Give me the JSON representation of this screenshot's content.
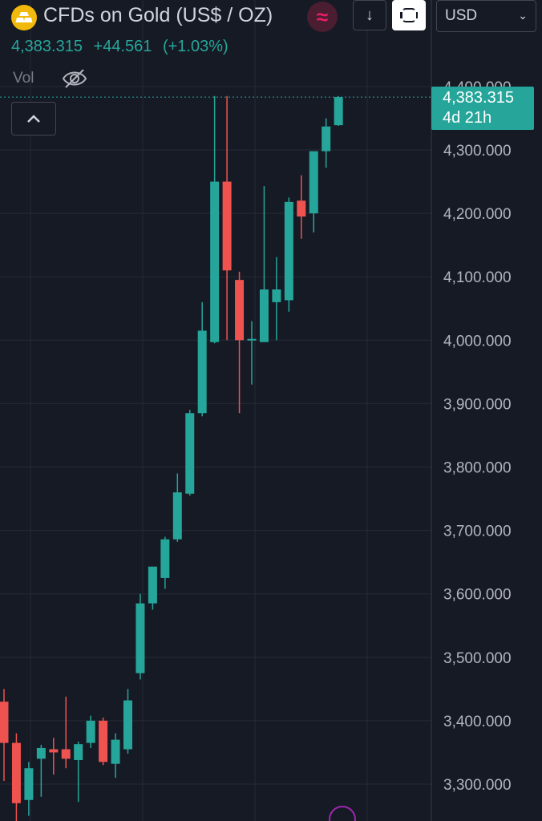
{
  "header": {
    "title": "CFDs on Gold (US$ / OZ)",
    "currency": "USD",
    "logo_icon": "gold-bars-icon",
    "wave_icon": "approximately-icon",
    "down_icon": "arrow-down-icon",
    "frame_icon": "fullscreen-icon"
  },
  "quote": {
    "last": "4,383.315",
    "change": "+44.561",
    "change_pct": "(+1.03%)"
  },
  "volume": {
    "label": "Vol",
    "icon": "eye-slash-icon"
  },
  "badge": {
    "price": "4,383.315",
    "countdown": "4d 21h"
  },
  "colors": {
    "up": "#26a69a",
    "down": "#ef5350",
    "background": "#161a25",
    "grid": "#262b36",
    "accent": "#9c27b0"
  },
  "chart_data": {
    "type": "candlestick",
    "ylim": [
      3250,
      4400
    ],
    "y_ticks": [
      3300,
      3400,
      3500,
      3600,
      3700,
      3800,
      3900,
      4000,
      4100,
      4200,
      4300,
      4400
    ],
    "y_tick_labels": [
      "3,300.000",
      "3,400.000",
      "3,500.000",
      "3,600.000",
      "3,700.000",
      "3,800.000",
      "3,900.000",
      "4,000.000",
      "4,100.000",
      "4,200.000",
      "4,300.000",
      "4,400.000"
    ],
    "last_price": 4383.315,
    "grid": true,
    "candles": [
      {
        "o": 3430,
        "h": 3450,
        "l": 3305,
        "c": 3365
      },
      {
        "o": 3365,
        "h": 3380,
        "l": 3240,
        "c": 3270
      },
      {
        "o": 3275,
        "h": 3335,
        "l": 3250,
        "c": 3325
      },
      {
        "o": 3340,
        "h": 3362,
        "l": 3280,
        "c": 3357
      },
      {
        "o": 3355,
        "h": 3373,
        "l": 3315,
        "c": 3350
      },
      {
        "o": 3355,
        "h": 3438,
        "l": 3325,
        "c": 3340
      },
      {
        "o": 3338,
        "h": 3367,
        "l": 3272,
        "c": 3363
      },
      {
        "o": 3365,
        "h": 3408,
        "l": 3357,
        "c": 3400
      },
      {
        "o": 3400,
        "h": 3405,
        "l": 3330,
        "c": 3335
      },
      {
        "o": 3332,
        "h": 3380,
        "l": 3310,
        "c": 3370
      },
      {
        "o": 3355,
        "h": 3450,
        "l": 3348,
        "c": 3432
      },
      {
        "o": 3475,
        "h": 3600,
        "l": 3465,
        "c": 3585
      },
      {
        "o": 3585,
        "h": 3637,
        "l": 3575,
        "c": 3643
      },
      {
        "o": 3625,
        "h": 3690,
        "l": 3608,
        "c": 3686
      },
      {
        "o": 3686,
        "h": 3790,
        "l": 3682,
        "c": 3760
      },
      {
        "o": 3758,
        "h": 3890,
        "l": 3755,
        "c": 3885
      },
      {
        "o": 3885,
        "h": 4060,
        "l": 3880,
        "c": 4015
      },
      {
        "o": 3997,
        "h": 4385,
        "l": 3995,
        "c": 4250
      },
      {
        "o": 4250,
        "h": 4385,
        "l": 4000,
        "c": 4110
      },
      {
        "o": 4095,
        "h": 4108,
        "l": 3885,
        "c": 4000
      },
      {
        "o": 4000,
        "h": 4030,
        "l": 3930,
        "c": 4002
      },
      {
        "o": 3997,
        "h": 4243,
        "l": 3997,
        "c": 4080
      },
      {
        "o": 4060,
        "h": 4131,
        "l": 4000,
        "c": 4080
      },
      {
        "o": 4063,
        "h": 4225,
        "l": 4045,
        "c": 4218
      },
      {
        "o": 4220,
        "h": 4260,
        "l": 4160,
        "c": 4195
      },
      {
        "o": 4200,
        "h": 4297,
        "l": 4170,
        "c": 4298
      },
      {
        "o": 4298,
        "h": 4350,
        "l": 4272,
        "c": 4337
      },
      {
        "o": 4339,
        "h": 4385,
        "l": 4338,
        "c": 4383.315
      }
    ]
  }
}
